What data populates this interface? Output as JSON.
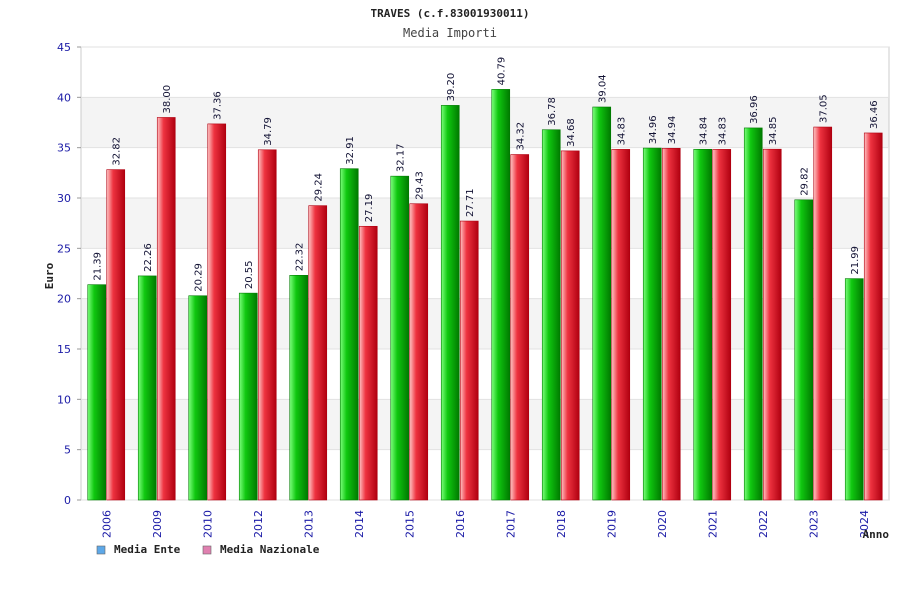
{
  "colors": {
    "ente_light": "#7dff7d",
    "ente_mid": "#10c810",
    "ente_dark": "#007a00",
    "naz_light": "#ffc4c4",
    "naz_mid": "#ee3340",
    "naz_dark": "#b00010",
    "legend_ente": "#5da8e8",
    "legend_naz": "#e080b0",
    "band": "#f4f4f4",
    "tick_text": "#1a1aa6"
  },
  "chart_data": {
    "type": "bar",
    "title": "TRAVES (c.f.83001930011)",
    "subtitle": "Media Importi",
    "xlabel": "Anno",
    "ylabel": "Euro",
    "ylim": [
      0,
      45
    ],
    "yticks": [
      "0",
      "5",
      "10",
      "15",
      "20",
      "25",
      "30",
      "35",
      "40",
      "45"
    ],
    "grid": true,
    "legend_position": "bottom-left",
    "categories": [
      "2006",
      "2009",
      "2010",
      "2012",
      "2013",
      "2014",
      "2015",
      "2016",
      "2017",
      "2018",
      "2019",
      "2020",
      "2021",
      "2022",
      "2023",
      "2024"
    ],
    "series": [
      {
        "name": "Media Ente",
        "values": [
          21.39,
          22.26,
          20.29,
          20.55,
          22.32,
          32.91,
          32.17,
          39.2,
          40.79,
          36.78,
          39.04,
          34.96,
          34.84,
          36.96,
          29.82,
          21.99
        ],
        "labels": [
          "21.39",
          "22.26",
          "20.29",
          "20.55",
          "22.32",
          "32.91",
          "32.17",
          "39.20",
          "40.79",
          "36.78",
          "39.04",
          "34.96",
          "34.84",
          "36.96",
          "29.82",
          "21.99"
        ]
      },
      {
        "name": "Media Nazionale",
        "values": [
          32.82,
          38.0,
          37.36,
          34.79,
          29.24,
          27.19,
          29.43,
          27.71,
          34.32,
          34.68,
          34.83,
          34.94,
          34.83,
          34.85,
          37.05,
          36.46
        ],
        "labels": [
          "32.82",
          "38.00",
          "37.36",
          "34.79",
          "29.24",
          "27.19",
          "29.43",
          "27.71",
          "34.32",
          "34.68",
          "34.83",
          "34.94",
          "34.83",
          "34.85",
          "37.05",
          "36.46"
        ]
      }
    ]
  }
}
